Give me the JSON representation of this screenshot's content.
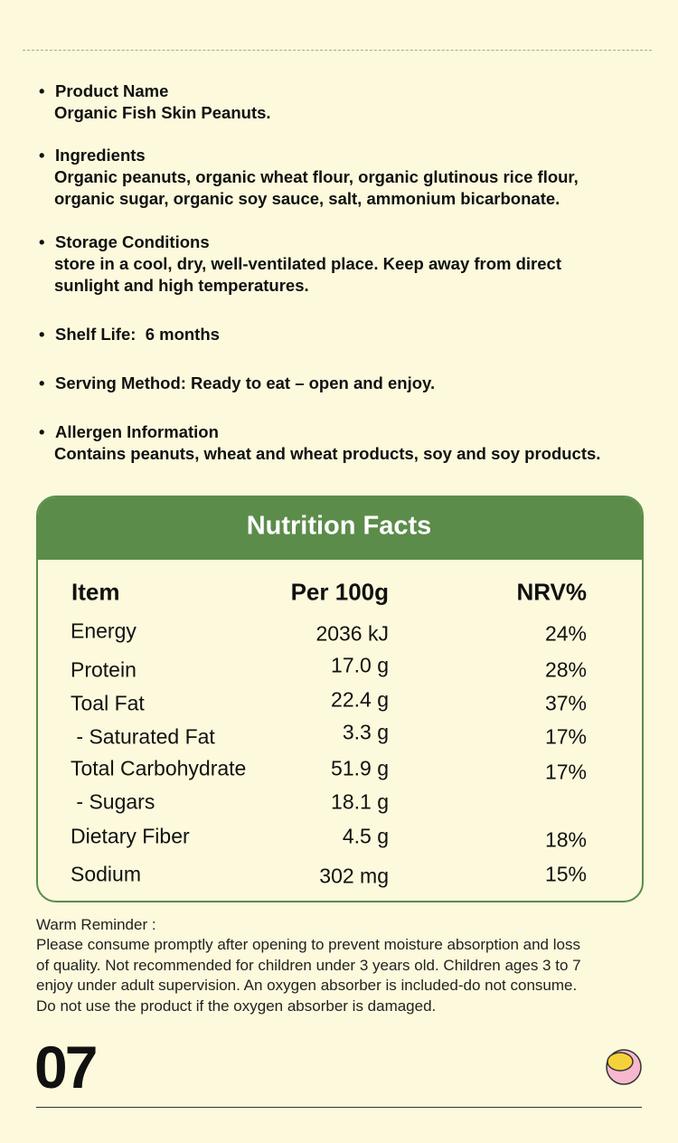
{
  "sections": [
    {
      "title": "Product Name",
      "body": [
        "Organic Fish Skin Peanuts."
      ]
    },
    {
      "title": "Ingredients",
      "body": [
        "Organic peanuts, organic wheat flour, organic glutinous rice flour,",
        "organic sugar, organic soy sauce, salt, ammonium bicarbonate."
      ]
    },
    {
      "title": "Storage Conditions",
      "body": [
        "store in a cool, dry, well-ventilated place. Keep away from direct",
        "sunlight and high temperatures."
      ]
    },
    {
      "title": "Shelf Life:  6 months",
      "body": []
    },
    {
      "title": "Serving Method: Ready to eat – open and enjoy.",
      "body": []
    },
    {
      "title": "Allergen Information",
      "body": [
        "Contains peanuts, wheat and wheat products, soy and soy products."
      ]
    }
  ],
  "nutrition": {
    "title": "Nutrition Facts",
    "header": [
      "Item",
      "Per 100g",
      "NRV%"
    ],
    "rows": [
      [
        "Energy",
        "2036 kJ",
        "24%"
      ],
      [
        "Protein",
        "17.0 g",
        "28%"
      ],
      [
        "Toal Fat",
        "22.4 g",
        "37%"
      ],
      [
        " - Saturated Fat",
        "3.3 g",
        "17%"
      ],
      [
        "Total Carbohydrate",
        "51.9 g",
        "17%"
      ],
      [
        " - Sugars",
        "18.1 g"
      ],
      [
        "Dietary Fiber",
        "4.5 g",
        "18%"
      ],
      [
        "Sodium",
        "302 mg",
        "15%"
      ]
    ]
  },
  "reminder": {
    "title": "Warm Reminder :",
    "lines": [
      "Please consume promptly after opening to prevent moisture absorption and loss",
      "of quality. Not recommended for children under 3 years old. Children ages 3 to 7",
      "enjoy under adult supervision. An oxygen absorber is included-do not consume.",
      "Do not use the product if the oxygen absorber is damaged."
    ]
  },
  "page_number": "07"
}
